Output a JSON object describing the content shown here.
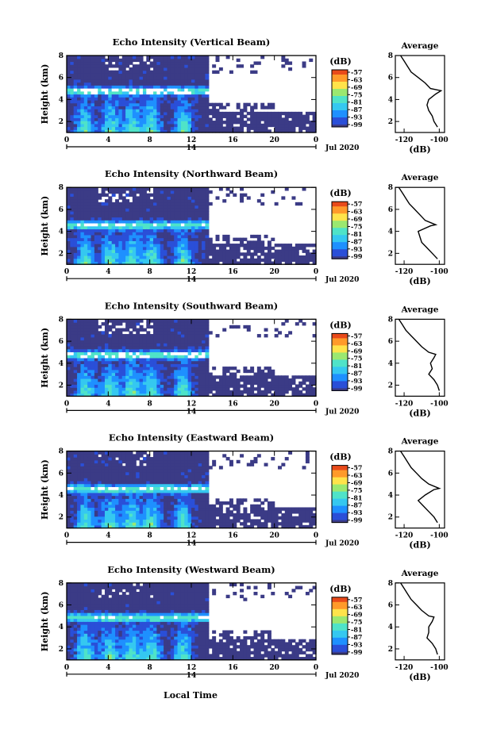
{
  "figure": {
    "xlabel": "Local Time",
    "date_label": "Jul 2020",
    "day_label": "14",
    "colorbar_unit": "(dB)",
    "colorbar_ticks": [
      "-57",
      "-63",
      "-69",
      "-75",
      "-81",
      "-87",
      "-93",
      "-99"
    ],
    "avg_title": "Average",
    "avg_xlabel": "(dB)",
    "colors": {
      "background_fill": "#3b3b86",
      "colormap": [
        "#3b3b86",
        "#2a4fd8",
        "#1e90ff",
        "#35c8f0",
        "#4fe3c8",
        "#9be870",
        "#ffe34a",
        "#ff9a2a",
        "#e84a1a"
      ]
    }
  },
  "chart_data": [
    {
      "type": "heatmap",
      "title": "Echo Intensity (Vertical Beam)",
      "ylabel": "Height (km)",
      "x_ticks": [
        "0",
        "4",
        "8",
        "12",
        "16",
        "20",
        "0"
      ],
      "y_ticks": [
        "2",
        "4",
        "6",
        "8"
      ],
      "xlim": [
        0,
        24
      ],
      "ylim": [
        1,
        8
      ],
      "layer_height_km": 4.8,
      "data_end_hour": 13.5,
      "average_profile": {
        "x_ticks": [
          "-120",
          "-100"
        ],
        "xlim": [
          -125,
          -97
        ],
        "heights": [
          1.5,
          2,
          2.5,
          3,
          3.5,
          4,
          4.5,
          4.8,
          5,
          5.5,
          6,
          6.5,
          7,
          7.5,
          8
        ],
        "values": [
          -101,
          -103,
          -104,
          -106,
          -107,
          -106,
          -102,
          -99,
          -105,
          -108,
          -112,
          -116,
          -118,
          -120,
          -122
        ]
      }
    },
    {
      "type": "heatmap",
      "title": "Echo Intensity (Northward Beam)",
      "ylabel": "Height (km)",
      "x_ticks": [
        "0",
        "4",
        "8",
        "12",
        "16",
        "20",
        "0"
      ],
      "y_ticks": [
        "2",
        "4",
        "6",
        "8"
      ],
      "xlim": [
        0,
        24
      ],
      "ylim": [
        1,
        8
      ],
      "layer_height_km": 4.6,
      "data_end_hour": 13.5,
      "average_profile": {
        "x_ticks": [
          "-120",
          "-100"
        ],
        "xlim": [
          -125,
          -97
        ],
        "heights": [
          1.5,
          2,
          2.5,
          3,
          3.5,
          4,
          4.5,
          4.6,
          5,
          5.5,
          6,
          6.5,
          7,
          7.5,
          8
        ],
        "values": [
          -101,
          -104,
          -107,
          -110,
          -111,
          -112,
          -105,
          -102,
          -108,
          -111,
          -114,
          -117,
          -119,
          -121,
          -123
        ]
      }
    },
    {
      "type": "heatmap",
      "title": "Echo Intensity (Southward Beam)",
      "ylabel": "Height (km)",
      "x_ticks": [
        "0",
        "4",
        "8",
        "12",
        "16",
        "20",
        "0"
      ],
      "y_ticks": [
        "2",
        "4",
        "6",
        "8"
      ],
      "xlim": [
        0,
        24
      ],
      "ylim": [
        1,
        8
      ],
      "layer_height_km": 4.8,
      "data_end_hour": 13.5,
      "average_profile": {
        "x_ticks": [
          "-120",
          "-100"
        ],
        "xlim": [
          -125,
          -97
        ],
        "heights": [
          1.5,
          2,
          2.5,
          3,
          3.5,
          4,
          4.5,
          4.8,
          5,
          5.5,
          6,
          6.5,
          7,
          7.5,
          8
        ],
        "values": [
          -100,
          -101,
          -103,
          -106,
          -104,
          -105,
          -103,
          -102,
          -106,
          -110,
          -113,
          -116,
          -119,
          -121,
          -123
        ]
      }
    },
    {
      "type": "heatmap",
      "title": "Echo Intensity (Eastward Beam)",
      "ylabel": "Height (km)",
      "x_ticks": [
        "0",
        "4",
        "8",
        "12",
        "16",
        "20",
        "0"
      ],
      "y_ticks": [
        "2",
        "4",
        "6",
        "8"
      ],
      "xlim": [
        0,
        24
      ],
      "ylim": [
        1,
        8
      ],
      "layer_height_km": 4.6,
      "data_end_hour": 13.5,
      "average_profile": {
        "x_ticks": [
          "-120",
          "-100"
        ],
        "xlim": [
          -125,
          -97
        ],
        "heights": [
          1.5,
          2,
          2.5,
          3,
          3.5,
          4,
          4.5,
          4.6,
          5,
          5.5,
          6,
          6.5,
          7,
          7.5,
          8
        ],
        "values": [
          -101,
          -103,
          -106,
          -109,
          -112,
          -108,
          -103,
          -100,
          -106,
          -110,
          -113,
          -116,
          -118,
          -120,
          -122
        ]
      }
    },
    {
      "type": "heatmap",
      "title": "Echo Intensity (Westward Beam)",
      "ylabel": "Height (km)",
      "x_ticks": [
        "0",
        "4",
        "8",
        "12",
        "16",
        "20",
        "0"
      ],
      "y_ticks": [
        "2",
        "4",
        "6",
        "8"
      ],
      "xlim": [
        0,
        24
      ],
      "ylim": [
        1,
        8
      ],
      "layer_height_km": 4.9,
      "data_end_hour": 13.5,
      "average_profile": {
        "x_ticks": [
          "-120",
          "-100"
        ],
        "xlim": [
          -125,
          -97
        ],
        "heights": [
          1.5,
          2,
          2.5,
          3,
          3.5,
          4,
          4.5,
          4.9,
          5,
          5.5,
          6,
          6.5,
          7,
          7.5,
          8
        ],
        "values": [
          -101,
          -102,
          -104,
          -107,
          -106,
          -106,
          -104,
          -103,
          -106,
          -110,
          -113,
          -116,
          -118,
          -120,
          -122
        ]
      }
    }
  ]
}
